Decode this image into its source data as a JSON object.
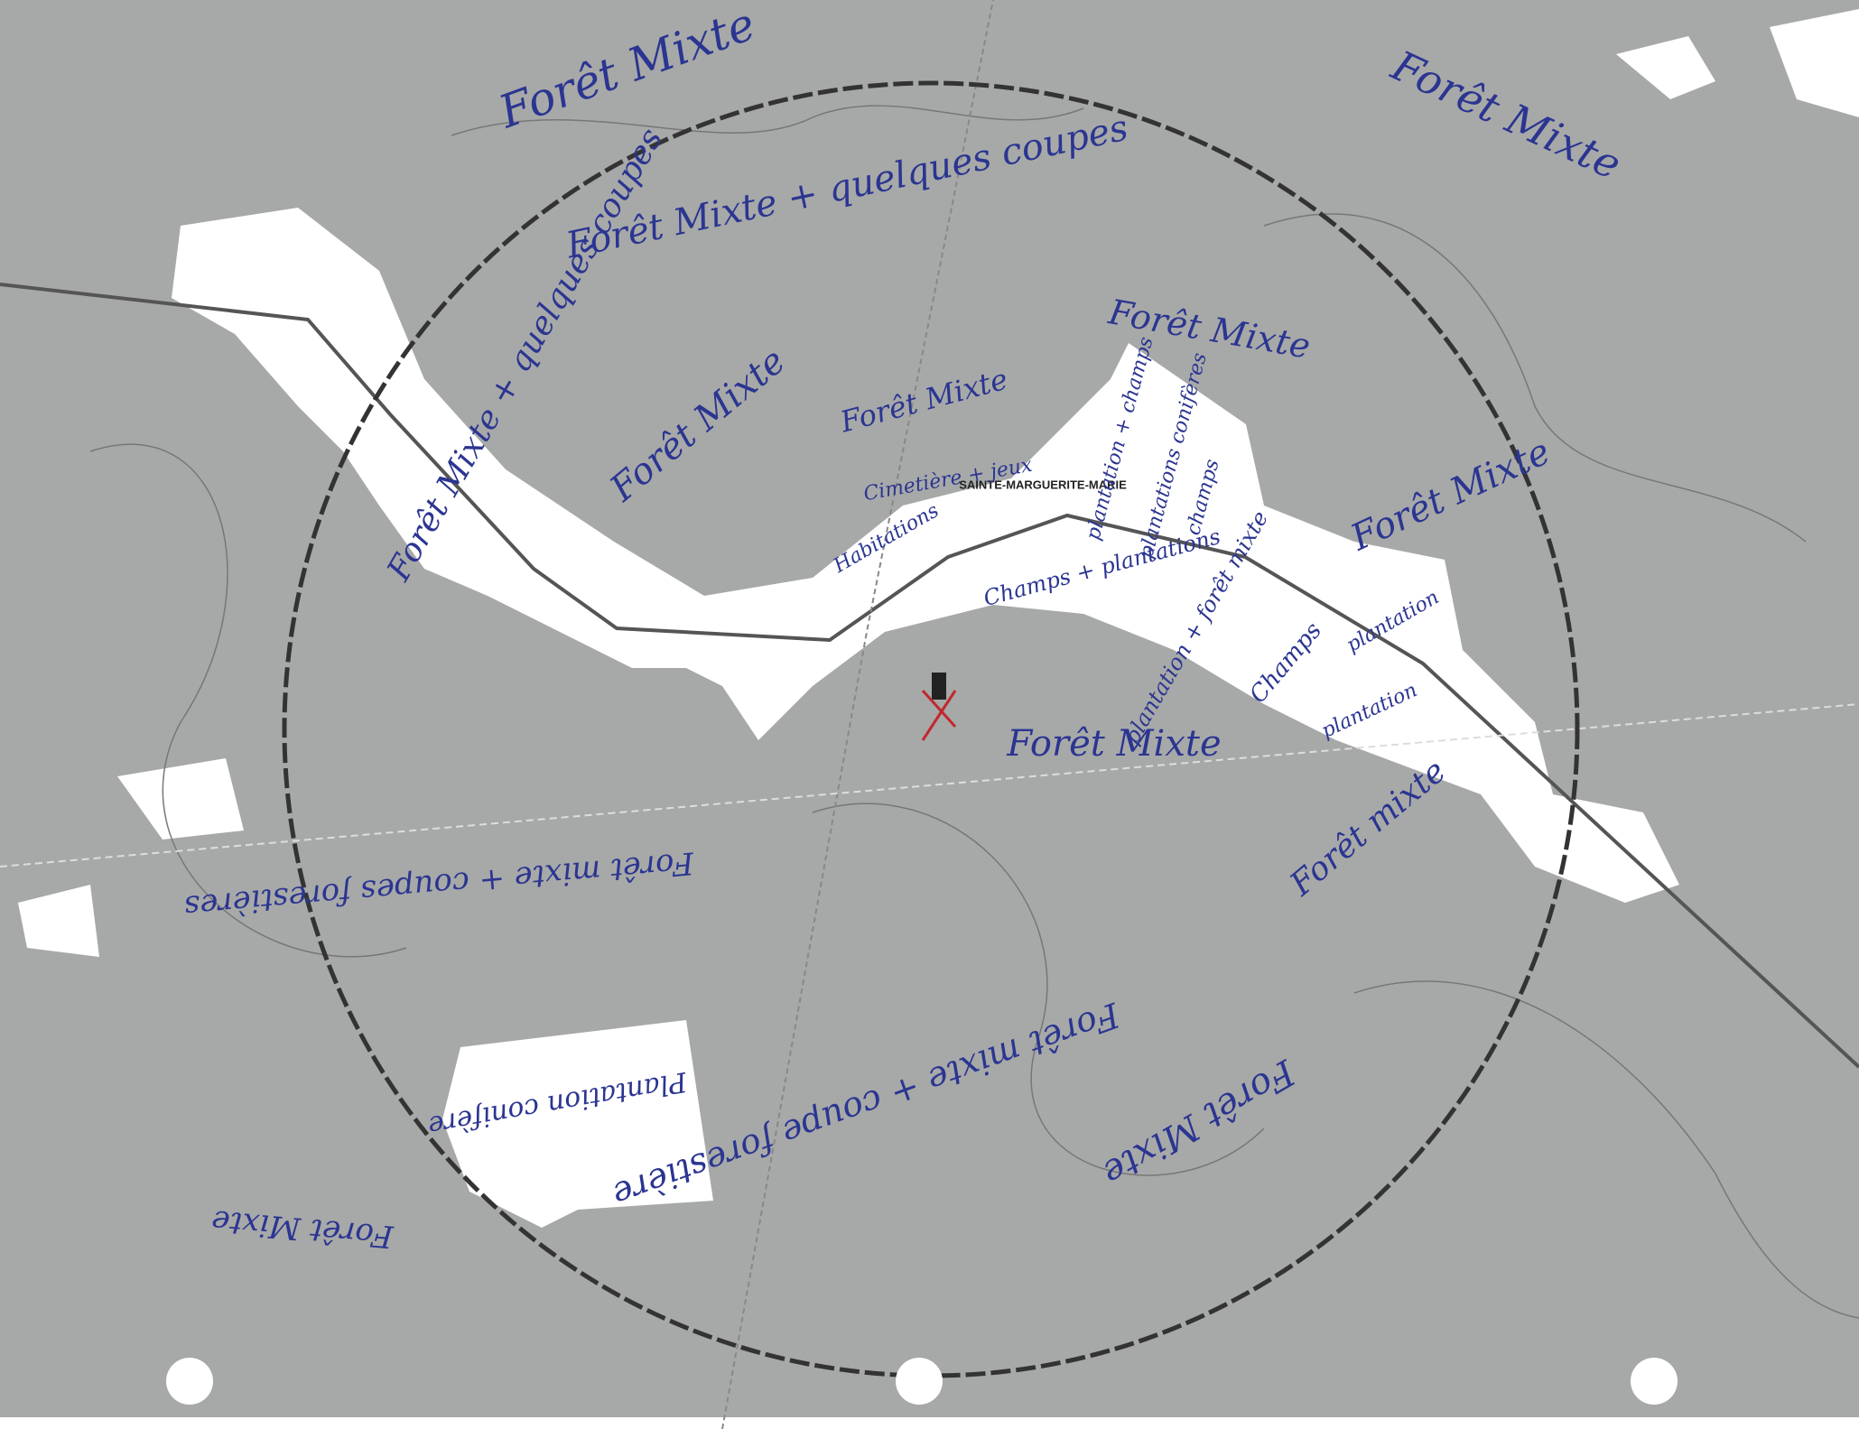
{
  "place_label": "SAINTE-MARGUERITE-MARIE",
  "annotations": [
    {
      "text": "Forêt Mixte"
    },
    {
      "text": "Forêt Mixte"
    },
    {
      "text": "Forêt Mixte + quelques coupes"
    },
    {
      "text": "Forêt Mixte + quelques coupes"
    },
    {
      "text": "Forêt Mixte"
    },
    {
      "text": "Forêt Mixte"
    },
    {
      "text": "Forêt Mixte"
    },
    {
      "text": "Cimetière + jeux"
    },
    {
      "text": "Habitations"
    },
    {
      "text": "plantation + champs"
    },
    {
      "text": "plantations conifères"
    },
    {
      "text": "champs"
    },
    {
      "text": "Champs + plantations"
    },
    {
      "text": "Forêt Mixte"
    },
    {
      "text": "plantation + forêt mixte"
    },
    {
      "text": "Champs"
    },
    {
      "text": "plantation"
    },
    {
      "text": "plantation"
    },
    {
      "text": "Forêt Mixte"
    },
    {
      "text": "Forêt mixte"
    },
    {
      "text": "Forêt mixte + coupes forestières"
    },
    {
      "text": "Forêt mixte + coupe forestière"
    },
    {
      "text": "Forêt Mixte"
    },
    {
      "text": "Plantation conifère"
    },
    {
      "text": "Forêt Mixte"
    }
  ]
}
